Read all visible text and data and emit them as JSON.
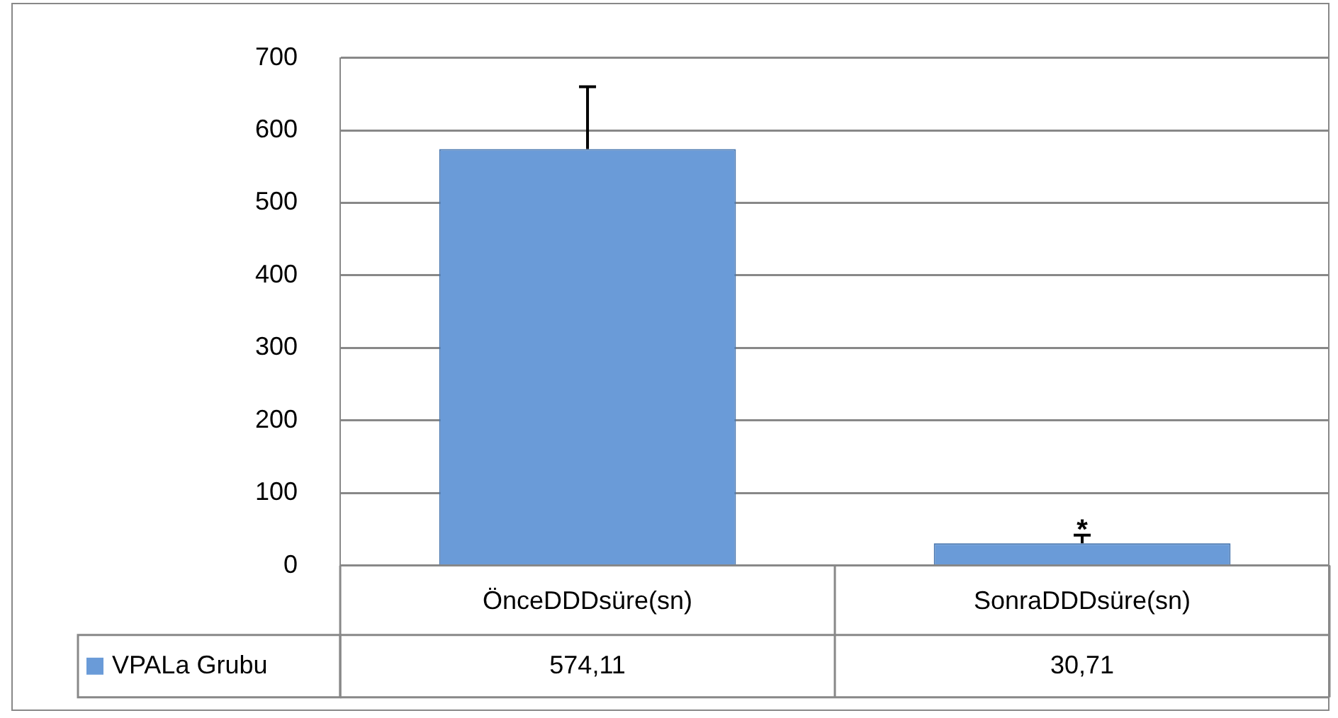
{
  "chart_data": {
    "type": "bar",
    "categories": [
      "ÖnceDDDsüre(sn)",
      "SonraDDDsüre(sn)"
    ],
    "series": [
      {
        "name": "VPALa Grubu",
        "color": "#6a9bd8",
        "values": [
          574.11,
          30.71
        ],
        "errors": [
          [
            574.11,
            660
          ],
          [
            30.71,
            42
          ]
        ],
        "value_labels": [
          "574,11",
          "30,71"
        ]
      }
    ],
    "ylim": [
      0,
      700
    ],
    "yticks": [
      0,
      100,
      200,
      300,
      400,
      500,
      600,
      700
    ],
    "grid": "y",
    "legend": "bottom left",
    "annotations": [
      {
        "text": "*",
        "x": "SonraDDDsüre(sn)",
        "y": 48
      }
    ]
  }
}
